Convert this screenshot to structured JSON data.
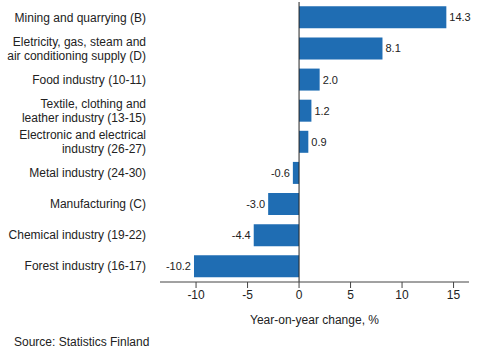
{
  "chart_data": {
    "type": "bar",
    "orientation": "horizontal",
    "categories": [
      "Mining and quarrying (B)",
      "Eletricity, gas, steam and\nair conditioning supply (D)",
      "Food industry (10-11)",
      "Textile, clothing and\nleather industry (13-15)",
      "Electronic and electrical\nindustry (26-27)",
      "Metal industry (24-30)",
      "Manufacturing (C)",
      "Chemical industry (19-22)",
      "Forest industry (16-17)"
    ],
    "values": [
      14.3,
      8.1,
      2.0,
      1.2,
      0.9,
      -0.6,
      -3.0,
      -4.4,
      -10.2
    ],
    "value_labels": [
      "14.3",
      "8.1",
      "2.0",
      "1.2",
      "0.9",
      "-0.6",
      "-3.0",
      "-4.4",
      "-10.2"
    ],
    "data_labels": true,
    "color": "#1f6db3",
    "xlabel": "Year-on-year change, %",
    "xlim": [
      -13.5,
      16.5
    ],
    "xticks": [
      -10,
      -5,
      0,
      5,
      10,
      15
    ],
    "grid": false,
    "source": "Source: Statistics Finland"
  }
}
